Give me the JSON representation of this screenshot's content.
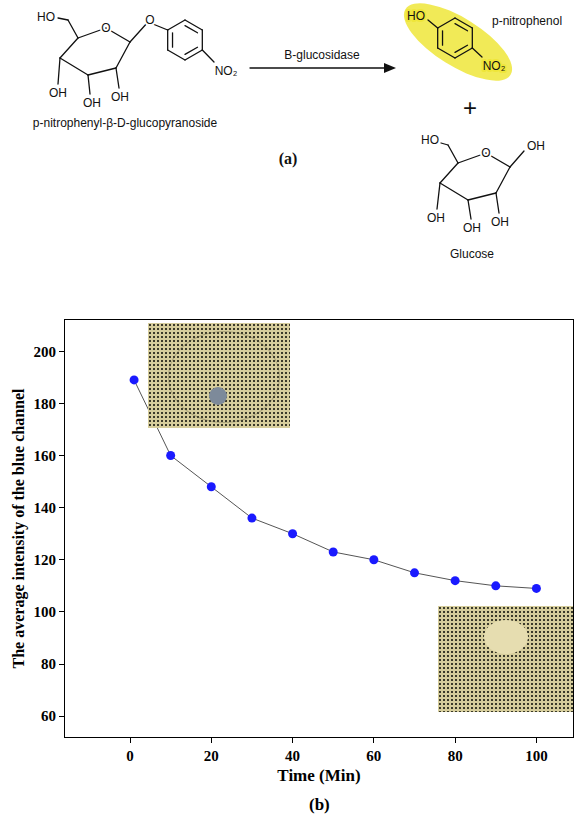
{
  "diagram": {
    "label": "(a)",
    "reactant": {
      "name": "p-nitrophenyl-β-D-glucopyranoside",
      "atoms": [
        "HO",
        "O",
        "O",
        "OH",
        "OH",
        "OH",
        "NO₂"
      ]
    },
    "enzyme": "B-glucosidase",
    "plus": "+",
    "products": [
      {
        "name": "p-nitrophenol",
        "atoms": [
          "HO",
          "NO₂"
        ]
      },
      {
        "name": "Glucose",
        "atoms": [
          "HO",
          "O",
          "OH",
          "OH",
          "OH",
          "OH"
        ]
      }
    ]
  },
  "chart_data": {
    "type": "line",
    "panel_label": "(b)",
    "x_label": "Time (Min)",
    "y_label": "The average intensity of the blue channel",
    "x": [
      1,
      10,
      20,
      30,
      40,
      50,
      60,
      70,
      80,
      90,
      100
    ],
    "values": [
      189,
      160,
      148,
      136,
      130,
      123,
      120,
      115,
      112,
      110,
      109
    ],
    "color": "#1a1aff",
    "marker": "circle",
    "line_style": "solid",
    "xlim": [
      -16,
      109
    ],
    "xticks": [
      0,
      20,
      40,
      60,
      80,
      100
    ],
    "ylim": [
      52,
      212
    ],
    "yticks": [
      60,
      80,
      100,
      120,
      140,
      160,
      180,
      200
    ],
    "grid": false
  }
}
